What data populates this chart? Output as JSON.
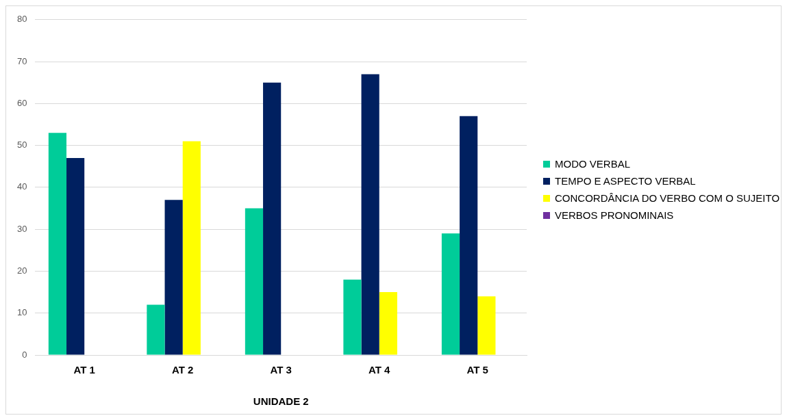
{
  "chart_data": {
    "type": "bar",
    "categories": [
      "AT 1",
      "AT 2",
      "AT 3",
      "AT 4",
      "AT 5"
    ],
    "xlabel": "UNIDADE 2",
    "series": [
      {
        "name": "MODO VERBAL",
        "color": "#00cc99",
        "values": [
          53,
          12,
          35,
          18,
          29
        ]
      },
      {
        "name": "TEMPO E ASPECTO VERBAL",
        "color": "#002060",
        "values": [
          47,
          37,
          65,
          67,
          57
        ]
      },
      {
        "name": "CONCORDÂNCIA DO VERBO COM O SUJEITO",
        "color": "#ffff00",
        "values": [
          null,
          51,
          null,
          15,
          14
        ]
      },
      {
        "name": "VERBOS PRONOMINAIS",
        "color": "#7030a0",
        "values": [
          null,
          null,
          null,
          null,
          null
        ]
      }
    ],
    "ylim": [
      0,
      80
    ],
    "yticks": [
      0,
      10,
      20,
      30,
      40,
      50,
      60,
      70,
      80
    ],
    "grid": "y",
    "legend": "right"
  }
}
